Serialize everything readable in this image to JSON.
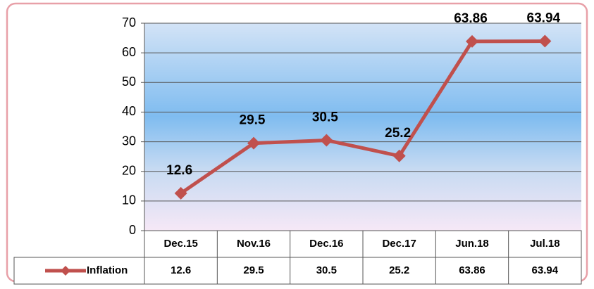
{
  "chart_data": {
    "type": "line",
    "categories": [
      "Dec.15",
      "Nov.16",
      "Dec.16",
      "Dec.17",
      "Jun.18",
      "Jul.18"
    ],
    "series": [
      {
        "name": "Inflation",
        "color": "#c0504d",
        "values": [
          12.6,
          29.5,
          30.5,
          25.2,
          63.86,
          63.94
        ]
      }
    ],
    "ylim": [
      0,
      70
    ],
    "yticks": [
      0,
      10,
      20,
      30,
      40,
      50,
      60,
      70
    ],
    "grid": true,
    "data_table": true
  }
}
